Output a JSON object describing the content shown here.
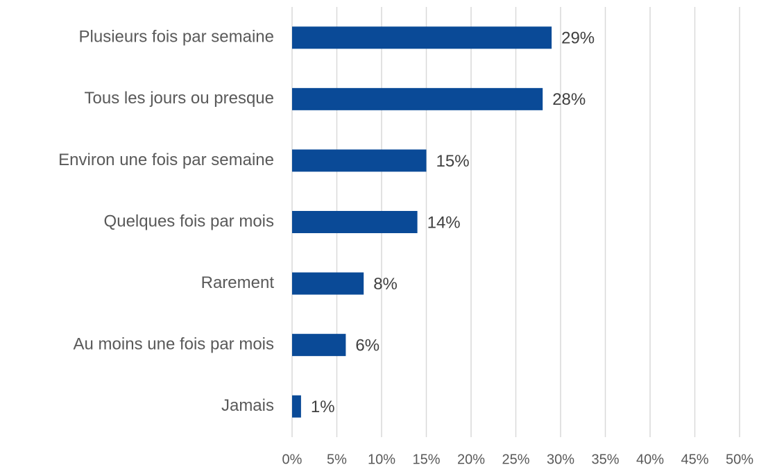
{
  "chart_data": {
    "type": "hbar",
    "categories": [
      "Plusieurs fois par semaine",
      "Tous les jours ou presque",
      "Environ une fois par semaine",
      "Quelques fois par mois",
      "Rarement",
      "Au moins une fois par mois",
      "Jamais"
    ],
    "values": [
      29,
      28,
      15,
      14,
      8,
      6,
      1
    ],
    "value_labels": [
      "29%",
      "28%",
      "15%",
      "14%",
      "8%",
      "6%",
      "1%"
    ],
    "color": "#0a4a97",
    "xlim": [
      0,
      50
    ],
    "xticks": [
      {
        "value": 0,
        "label": "0%"
      },
      {
        "value": 5,
        "label": "5%"
      },
      {
        "value": 10,
        "label": "10%"
      },
      {
        "value": 15,
        "label": "15%"
      },
      {
        "value": 20,
        "label": "20%"
      },
      {
        "value": 25,
        "label": "25%"
      },
      {
        "value": 30,
        "label": "30%"
      },
      {
        "value": 35,
        "label": "35%"
      },
      {
        "value": 40,
        "label": "40%"
      },
      {
        "value": 45,
        "label": "45%"
      },
      {
        "value": 50,
        "label": "50%"
      }
    ],
    "grid": true
  }
}
